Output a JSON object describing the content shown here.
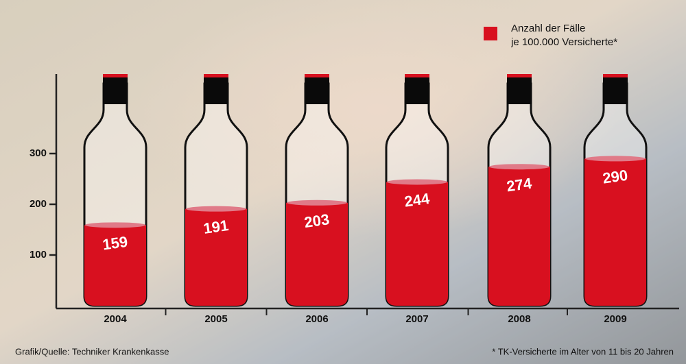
{
  "chart_data": {
    "type": "bar",
    "categories": [
      "2004",
      "2005",
      "2006",
      "2007",
      "2008",
      "2009"
    ],
    "series": [
      {
        "name": "Anzahl der Fälle\nje 100.000 Versicherte*",
        "color": "#d8101f",
        "values": [
          159,
          191,
          203,
          244,
          274,
          290
        ]
      }
    ],
    "ylim": [
      0,
      450
    ],
    "yticks": [
      100,
      200,
      300
    ],
    "source": "Grafik/Quelle: Techniker Krankenkasse",
    "footnote": "* TK-Versicherte im Alter von 11 bis 20 Jahren"
  }
}
